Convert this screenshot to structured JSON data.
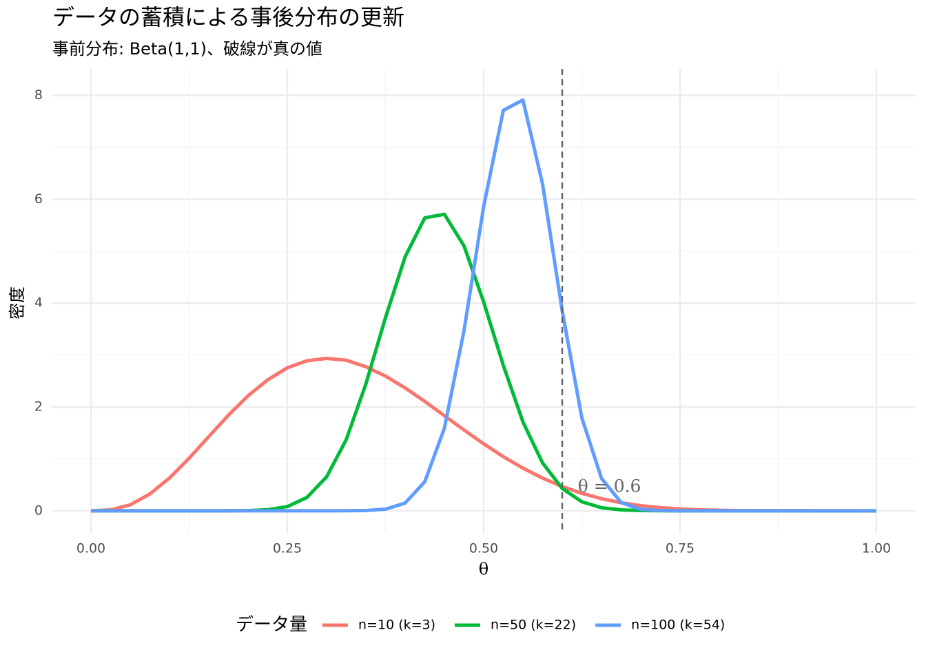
{
  "chart_data": {
    "type": "line",
    "title": "データの蓄積による事後分布の更新",
    "subtitle": "事前分布: Beta(1,1)、破線が真の値",
    "x_label": "θ",
    "y_label": "密度",
    "x": [
      0,
      0.025,
      0.05,
      0.075,
      0.1,
      0.125,
      0.15,
      0.175,
      0.2,
      0.225,
      0.25,
      0.275,
      0.3,
      0.325,
      0.35,
      0.375,
      0.4,
      0.425,
      0.45,
      0.475,
      0.5,
      0.525,
      0.55,
      0.575,
      0.6,
      0.625,
      0.65,
      0.675,
      0.7,
      0.725,
      0.75,
      0.775,
      0.8,
      0.825,
      0.85,
      0.875,
      0.9,
      0.925,
      0.95,
      0.975,
      1
    ],
    "series": [
      {
        "name": "n=10 (k=3)",
        "color": "#F8766D",
        "values": [
          0,
          0.017,
          0.115,
          0.323,
          0.631,
          1.012,
          1.428,
          1.84,
          2.214,
          2.521,
          2.753,
          2.888,
          2.935,
          2.9,
          2.774,
          2.593,
          2.365,
          2.106,
          1.831,
          1.556,
          1.289,
          1.042,
          0.821,
          0.629,
          0.467,
          0.336,
          0.233,
          0.155,
          0.099,
          0.06,
          0.034,
          0.018,
          0.009,
          0.004,
          0.001,
          0.0004,
          0.0001,
          0,
          0,
          0,
          0
        ]
      },
      {
        "name": "n=50 (k=22)",
        "color": "#00BA38",
        "values": [
          0,
          0,
          0,
          0,
          0,
          0,
          0,
          0.001,
          0.004,
          0.02,
          0.081,
          0.257,
          0.652,
          1.37,
          2.44,
          3.72,
          4.89,
          5.64,
          5.71,
          5.1,
          4.02,
          2.8,
          1.71,
          0.92,
          0.43,
          0.173,
          0.059,
          0.017,
          0.004,
          0.001,
          0,
          0,
          0,
          0,
          0,
          0,
          0,
          0,
          0,
          0,
          0
        ]
      },
      {
        "name": "n=100 (k=54)",
        "color": "#619CFF",
        "values": [
          0,
          0,
          0,
          0,
          0,
          0,
          0,
          0,
          0,
          0,
          0,
          0,
          0,
          0.001,
          0.005,
          0.03,
          0.149,
          0.559,
          1.59,
          3.47,
          5.86,
          7.71,
          7.91,
          6.29,
          3.85,
          1.79,
          0.624,
          0.158,
          0.028,
          0.004,
          0,
          0,
          0,
          0,
          0,
          0,
          0,
          0,
          0,
          0,
          0
        ]
      }
    ],
    "xlim": [
      -0.05,
      1.05
    ],
    "ylim": [
      -0.44,
      8.51
    ],
    "xticks": [
      {
        "value": 0,
        "label": "0.00"
      },
      {
        "value": 0.25,
        "label": "0.25"
      },
      {
        "value": 0.5,
        "label": "0.50"
      },
      {
        "value": 0.75,
        "label": "0.75"
      },
      {
        "value": 1,
        "label": "1.00"
      }
    ],
    "yticks": [
      0,
      2,
      4,
      6,
      8
    ],
    "grid": true,
    "vline": {
      "x": 0.6,
      "color": "#666666"
    },
    "annotation": {
      "text": "θ = 0.6",
      "x": 0.62,
      "y": 0.45
    },
    "legend_title": "データ量",
    "legend_position": "bottom"
  }
}
